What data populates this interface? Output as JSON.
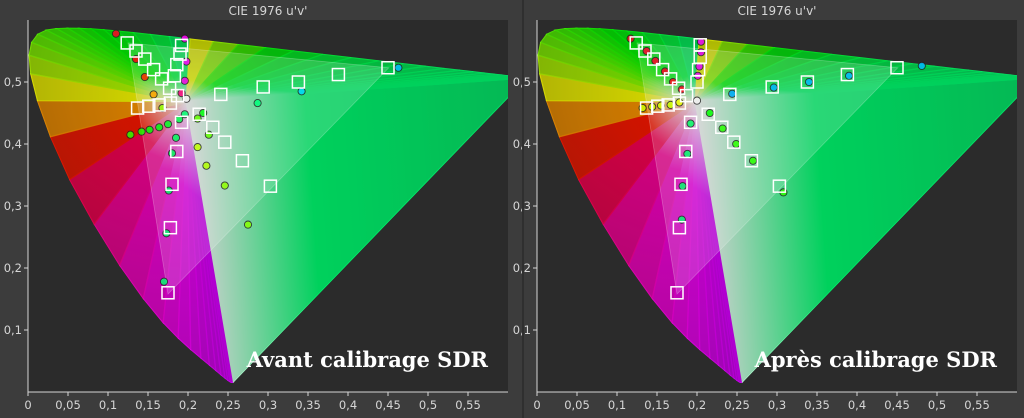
{
  "chart_data": [
    {
      "type": "scatter",
      "title": "CIE 1976 u'v'",
      "overlay_label": "Avant calibrage SDR",
      "xlim": [
        0,
        0.6
      ],
      "ylim": [
        0,
        0.6
      ],
      "x_ticks": [
        "0",
        "0,05",
        "0,1",
        "0,15",
        "0,2",
        "0,25",
        "0,3",
        "0,35",
        "0,4",
        "0,45",
        "0,5",
        "0,55"
      ],
      "y_ticks": [
        "0,1",
        "0,2",
        "0,3",
        "0,4",
        "0,5"
      ],
      "gamut_triangle": [
        [
          0.451,
          0.523
        ],
        [
          0.125,
          0.563
        ],
        [
          0.175,
          0.158
        ]
      ],
      "white_point": [
        0.198,
        0.468
      ],
      "series": [
        {
          "name": "targets",
          "marker": "square",
          "points": [
            [
              0.124,
              0.563
            ],
            [
              0.135,
              0.55
            ],
            [
              0.146,
              0.537
            ],
            [
              0.157,
              0.52
            ],
            [
              0.167,
              0.505
            ],
            [
              0.177,
              0.49
            ],
            [
              0.187,
              0.478
            ],
            [
              0.192,
              0.559
            ],
            [
              0.19,
              0.545
            ],
            [
              0.186,
              0.528
            ],
            [
              0.183,
              0.51
            ],
            [
              0.137,
              0.458
            ],
            [
              0.151,
              0.461
            ],
            [
              0.164,
              0.463
            ],
            [
              0.178,
              0.466
            ],
            [
              0.214,
              0.448
            ],
            [
              0.231,
              0.427
            ],
            [
              0.246,
              0.403
            ],
            [
              0.268,
              0.373
            ],
            [
              0.303,
              0.332
            ],
            [
              0.241,
              0.48
            ],
            [
              0.294,
              0.492
            ],
            [
              0.338,
              0.5
            ],
            [
              0.388,
              0.512
            ],
            [
              0.45,
              0.523
            ],
            [
              0.192,
              0.435
            ],
            [
              0.186,
              0.388
            ],
            [
              0.18,
              0.335
            ],
            [
              0.178,
              0.265
            ],
            [
              0.175,
              0.16
            ]
          ]
        },
        {
          "name": "measured",
          "marker": "circle",
          "points": [
            [
              0.11,
              0.578
            ],
            [
              0.135,
              0.537
            ],
            [
              0.146,
              0.508
            ],
            [
              0.157,
              0.48
            ],
            [
              0.168,
              0.458
            ],
            [
              0.196,
              0.57
            ],
            [
              0.198,
              0.533
            ],
            [
              0.196,
              0.502
            ],
            [
              0.192,
              0.482
            ],
            [
              0.128,
              0.415
            ],
            [
              0.142,
              0.42
            ],
            [
              0.152,
              0.423
            ],
            [
              0.164,
              0.427
            ],
            [
              0.175,
              0.432
            ],
            [
              0.189,
              0.44
            ],
            [
              0.196,
              0.448
            ],
            [
              0.212,
              0.441
            ],
            [
              0.226,
              0.415
            ],
            [
              0.212,
              0.395
            ],
            [
              0.223,
              0.365
            ],
            [
              0.246,
              0.333
            ],
            [
              0.275,
              0.27
            ],
            [
              0.219,
              0.45
            ],
            [
              0.287,
              0.466
            ],
            [
              0.342,
              0.485
            ],
            [
              0.463,
              0.523
            ],
            [
              0.198,
              0.473
            ],
            [
              0.185,
              0.41
            ],
            [
              0.18,
              0.385
            ],
            [
              0.176,
              0.325
            ],
            [
              0.173,
              0.256
            ],
            [
              0.17,
              0.178
            ]
          ]
        }
      ]
    },
    {
      "type": "scatter",
      "title": "CIE 1976 u'v'",
      "overlay_label": "Après calibrage SDR",
      "xlim": [
        0,
        0.6
      ],
      "ylim": [
        0,
        0.6
      ],
      "x_ticks": [
        "0",
        "0,05",
        "0,1",
        "0,15",
        "0,2",
        "0,25",
        "0,3",
        "0,35",
        "0,4",
        "0,45",
        "0,5",
        "0,55"
      ],
      "y_ticks": [
        "0,1",
        "0,2",
        "0,3",
        "0,4",
        "0,5"
      ],
      "gamut_triangle": [
        [
          0.451,
          0.523
        ],
        [
          0.125,
          0.563
        ],
        [
          0.175,
          0.158
        ]
      ],
      "white_point": [
        0.198,
        0.468
      ],
      "series": [
        {
          "name": "targets",
          "marker": "square",
          "points": [
            [
              0.124,
              0.563
            ],
            [
              0.135,
              0.55
            ],
            [
              0.146,
              0.537
            ],
            [
              0.157,
              0.52
            ],
            [
              0.167,
              0.505
            ],
            [
              0.177,
              0.49
            ],
            [
              0.187,
              0.478
            ],
            [
              0.204,
              0.56
            ],
            [
              0.204,
              0.54
            ],
            [
              0.202,
              0.52
            ],
            [
              0.2,
              0.5
            ],
            [
              0.137,
              0.458
            ],
            [
              0.151,
              0.461
            ],
            [
              0.164,
              0.463
            ],
            [
              0.178,
              0.466
            ],
            [
              0.214,
              0.448
            ],
            [
              0.231,
              0.427
            ],
            [
              0.246,
              0.403
            ],
            [
              0.268,
              0.373
            ],
            [
              0.303,
              0.332
            ],
            [
              0.241,
              0.48
            ],
            [
              0.294,
              0.492
            ],
            [
              0.338,
              0.5
            ],
            [
              0.388,
              0.512
            ],
            [
              0.45,
              0.523
            ],
            [
              0.192,
              0.435
            ],
            [
              0.186,
              0.388
            ],
            [
              0.18,
              0.335
            ],
            [
              0.178,
              0.265
            ],
            [
              0.175,
              0.16
            ]
          ]
        },
        {
          "name": "measured",
          "marker": "circle",
          "points": [
            [
              0.117,
              0.57
            ],
            [
              0.137,
              0.55
            ],
            [
              0.148,
              0.534
            ],
            [
              0.16,
              0.517
            ],
            [
              0.17,
              0.5
            ],
            [
              0.181,
              0.488
            ],
            [
              0.205,
              0.565
            ],
            [
              0.205,
              0.548
            ],
            [
              0.203,
              0.525
            ],
            [
              0.201,
              0.51
            ],
            [
              0.132,
              0.458
            ],
            [
              0.144,
              0.46
            ],
            [
              0.155,
              0.462
            ],
            [
              0.167,
              0.463
            ],
            [
              0.178,
              0.467
            ],
            [
              0.216,
              0.45
            ],
            [
              0.232,
              0.425
            ],
            [
              0.249,
              0.4
            ],
            [
              0.27,
              0.373
            ],
            [
              0.308,
              0.322
            ],
            [
              0.244,
              0.481
            ],
            [
              0.296,
              0.491
            ],
            [
              0.34,
              0.5
            ],
            [
              0.39,
              0.51
            ],
            [
              0.481,
              0.526
            ],
            [
              0.2,
              0.47
            ],
            [
              0.192,
              0.433
            ],
            [
              0.188,
              0.384
            ],
            [
              0.182,
              0.332
            ],
            [
              0.181,
              0.278
            ]
          ]
        }
      ]
    }
  ],
  "colors": {
    "background": "#3c3c3c",
    "plot_area": "#2b2b2b",
    "axis": "#d6d6d6",
    "target": "#ffffff",
    "measured_stroke": "#222222"
  }
}
